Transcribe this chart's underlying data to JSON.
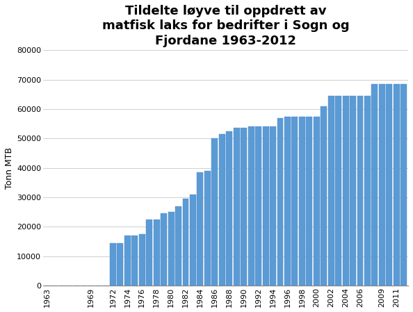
{
  "title": "Tildelte løyve til oppdrett av\nmatfisk laks for bedrifter i Sogn og\nFjordane 1963-2012",
  "ylabel": "Tonn MTB",
  "bar_color": "#5B9BD5",
  "bar_edge_color": "#4A86C8",
  "ylim": [
    0,
    80000
  ],
  "yticks": [
    0,
    10000,
    20000,
    30000,
    40000,
    50000,
    60000,
    70000,
    80000
  ],
  "background_color": "#FFFFFF",
  "title_fontsize": 13,
  "ylabel_fontsize": 9,
  "tick_fontsize": 8,
  "tick_years": [
    1963,
    1969,
    1972,
    1974,
    1976,
    1978,
    1980,
    1982,
    1984,
    1986,
    1988,
    1990,
    1992,
    1994,
    1996,
    1998,
    2000,
    2002,
    2004,
    2006,
    2009,
    2011
  ],
  "values_map": {
    "1963": 0,
    "1964": 0,
    "1965": 0,
    "1966": 0,
    "1967": 0,
    "1968": 0,
    "1969": 50,
    "1970": 0,
    "1971": 0,
    "1972": 14500,
    "1973": 14500,
    "1974": 17000,
    "1975": 17000,
    "1976": 17500,
    "1977": 22500,
    "1978": 22500,
    "1979": 24500,
    "1980": 25000,
    "1981": 27000,
    "1982": 29500,
    "1983": 31000,
    "1984": 38500,
    "1985": 39000,
    "1986": 50000,
    "1987": 51500,
    "1988": 52500,
    "1989": 53500,
    "1990": 53500,
    "1991": 54000,
    "1992": 54000,
    "1993": 54000,
    "1994": 54000,
    "1995": 57000,
    "1996": 57500,
    "1997": 57500,
    "1998": 57500,
    "1999": 57500,
    "2000": 57500,
    "2001": 61000,
    "2002": 64500,
    "2003": 64500,
    "2004": 64500,
    "2005": 64500,
    "2006": 64500,
    "2007": 64500,
    "2008": 68500,
    "2009": 68500,
    "2010": 68500,
    "2011": 68500,
    "2012": 68500
  }
}
